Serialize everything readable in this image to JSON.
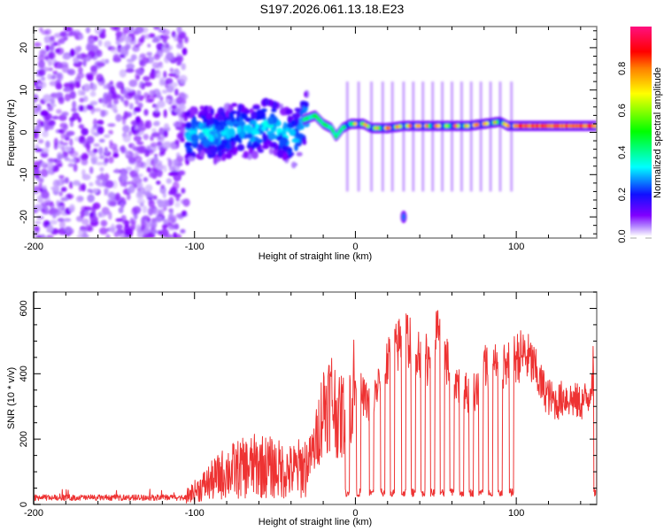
{
  "figure_title": "S197.2026.061.13.18.E23",
  "chart_data": [
    {
      "type": "heatmap",
      "title": "S197.2026.061.13.18.E23",
      "xlabel": "Height of straight line (km)",
      "ylabel": "Frequency (Hz)",
      "xlim": [
        -200,
        150
      ],
      "ylim": [
        -25,
        25
      ],
      "xticks": [
        -200,
        -100,
        0,
        100
      ],
      "xtick_labels": [
        "-200",
        "-100",
        "0",
        "100"
      ],
      "yticks": [
        -20,
        -10,
        0,
        10,
        20
      ],
      "ytick_labels": [
        "-20",
        "-10",
        "0",
        "10",
        "20"
      ],
      "grid": false,
      "colorbar": {
        "label": "Normalized spectral amplitude",
        "range": [
          0.0,
          1.0
        ],
        "ticks": [
          0.0,
          0.2,
          0.4,
          0.6,
          0.8
        ],
        "tick_labels": [
          "0.0",
          "0.2",
          "0.4",
          "0.6",
          "0.8"
        ],
        "colormap": [
          "#ffffff",
          "#8000ff",
          "#0000ff",
          "#00ffff",
          "#00ff00",
          "#ffff00",
          "#ff0000",
          "#ff1080"
        ]
      },
      "regions": [
        {
          "name": "noise",
          "x_range": [
            -200,
            -105
          ],
          "freq_range": [
            -25,
            25
          ],
          "amplitude": 0.1
        },
        {
          "name": "turbulent-echo",
          "x_range": [
            -105,
            -30
          ],
          "freq_range": [
            -8,
            6
          ],
          "amplitude": 0.3
        },
        {
          "name": "steady-echo",
          "x_range": [
            -30,
            150
          ],
          "freq_center": 1.5,
          "amplitude": 0.85
        },
        {
          "name": "isolated-spot",
          "x": 30,
          "freq": -20,
          "amplitude": 0.25
        }
      ],
      "ridge": {
        "x": [
          -105,
          -95,
          -85,
          -75,
          -65,
          -55,
          -45,
          -38,
          -32,
          -25,
          -20,
          -15,
          -12,
          -8,
          -3,
          0,
          5,
          10,
          20,
          30,
          40,
          50,
          60,
          70,
          80,
          90,
          95,
          100,
          110,
          120,
          130,
          140,
          150
        ],
        "freq": [
          -1,
          0,
          -1,
          1,
          0,
          2,
          0,
          -2,
          3,
          4,
          2,
          1,
          -1,
          1,
          2,
          2,
          2,
          1,
          1,
          1.5,
          1.5,
          1.5,
          1.5,
          1.5,
          2,
          2.5,
          1.5,
          1.5,
          1.5,
          1.5,
          1.5,
          1.5,
          1.5
        ]
      }
    },
    {
      "type": "line",
      "xlabel": "Height of straight line (km)",
      "ylabel": "SNR (10 * v/v)",
      "xlim": [
        -200,
        150
      ],
      "ylim": [
        0,
        650
      ],
      "xticks": [
        -200,
        -100,
        0,
        100
      ],
      "xtick_labels": [
        "-200",
        "-100",
        "0",
        "100"
      ],
      "yticks": [
        0,
        200,
        400,
        600
      ],
      "ytick_labels": [
        "0",
        "200",
        "400",
        "600"
      ],
      "grid": false,
      "series": [
        {
          "name": "SNR",
          "color": "#ee3333",
          "envelope": {
            "x": [
              -200,
              -180,
              -160,
              -140,
              -120,
              -105,
              -100,
              -90,
              -80,
              -70,
              -60,
              -50,
              -40,
              -30,
              -25,
              -20,
              -15,
              -10,
              -5,
              0,
              5,
              10,
              15,
              20,
              25,
              30,
              35,
              40,
              45,
              50,
              55,
              60,
              65,
              70,
              75,
              80,
              85,
              90,
              95,
              100,
              105,
              110,
              115,
              120,
              125,
              130,
              135,
              140,
              145,
              148,
              150
            ],
            "y": [
              20,
              20,
              20,
              22,
              22,
              25,
              40,
              70,
              100,
              110,
              120,
              110,
              100,
              120,
              180,
              300,
              330,
              260,
              300,
              370,
              330,
              300,
              380,
              430,
              470,
              520,
              500,
              470,
              440,
              530,
              460,
              400,
              360,
              340,
              350,
              420,
              430,
              420,
              420,
              450,
              460,
              430,
              370,
              330,
              310,
              330,
              320,
              310,
              330,
              420,
              400
            ]
          },
          "dropouts_x": [
            -5,
            2,
            10,
            17,
            23,
            30,
            36,
            42,
            48,
            54,
            60,
            66,
            72,
            78,
            84,
            90,
            97,
            149
          ],
          "dropout_level": 40
        }
      ]
    }
  ]
}
